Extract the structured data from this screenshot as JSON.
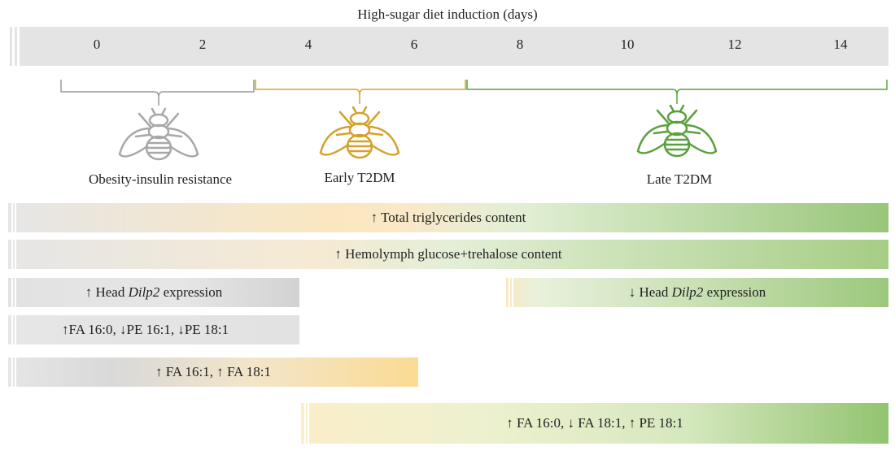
{
  "title": "High-sugar diet induction (days)",
  "ticks": [
    "0",
    "2",
    "4",
    "6",
    "8",
    "10",
    "12",
    "14"
  ],
  "stages": [
    {
      "label": "Obesity-insulin resistance",
      "color": "#a8a8a8"
    },
    {
      "label": "Early T2DM",
      "color": "#d4a22c"
    },
    {
      "label": "Late T2DM",
      "color": "#5aa03c"
    }
  ],
  "bars": [
    {
      "text": "↑ Total triglycerides content"
    },
    {
      "text": "↑ Hemolymph glucose+trehalose content"
    },
    {
      "pre": "↑ Head ",
      "ital": "Dilp2",
      "post": " expression"
    },
    {
      "pre": "↓ Head ",
      "ital": "Dilp2",
      "post": " expression"
    },
    {
      "text": "↑FA 16:0, ↓PE 16:1, ↓PE 18:1"
    },
    {
      "text": "↑ FA 16:1, ↑ FA 18:1"
    },
    {
      "text": "↑ FA 16:0, ↓ FA 18:1, ↑ PE 18:1"
    }
  ]
}
